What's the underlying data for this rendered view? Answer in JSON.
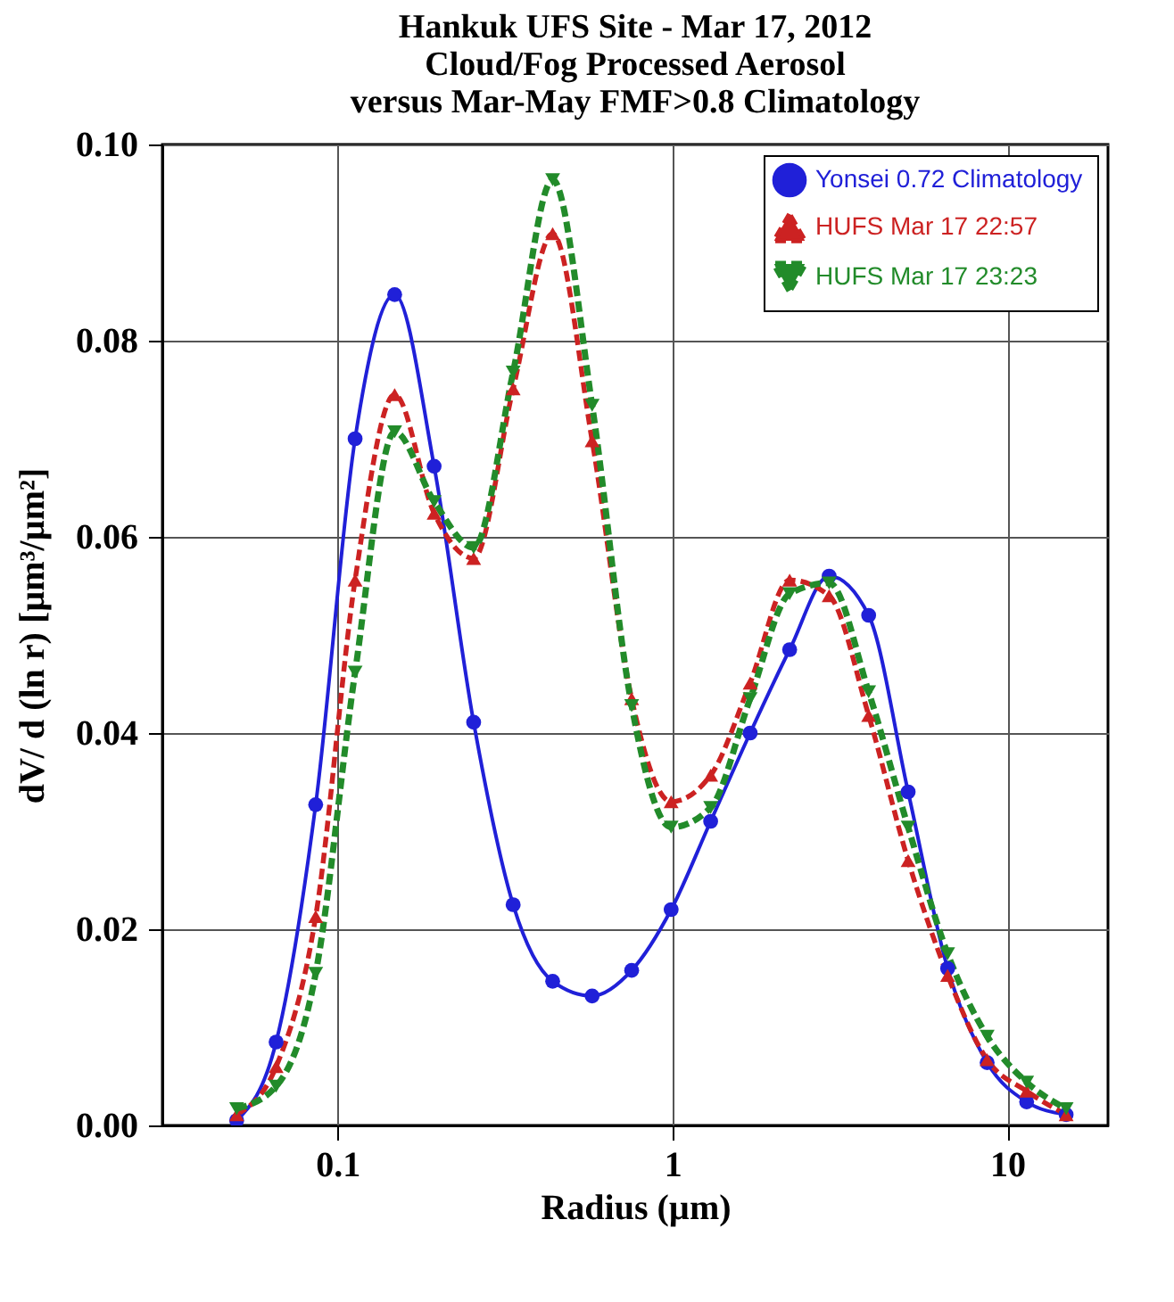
{
  "chart_data": {
    "type": "line",
    "title": "Hankuk UFS Site - Mar 17, 2012\nCloud/Fog Processed Aerosol\nversus Mar-May FMF>0.8 Climatology",
    "xlabel": "Radius (µm)",
    "ylabel": "dV/ d (ln r)  [µm³/µm²]",
    "log": "x",
    "xlim": [
      0.03,
      20
    ],
    "xticks": [
      0.1,
      1,
      10
    ],
    "ylim": [
      0,
      0.1
    ],
    "yticks": [
      {
        "value": 0,
        "label": "0.00"
      },
      {
        "value": 0.02,
        "label": "0.02"
      },
      {
        "value": 0.04,
        "label": "0.04"
      },
      {
        "value": 0.06,
        "label": "0.06"
      },
      {
        "value": 0.08,
        "label": "0.08"
      },
      {
        "value": 0.1,
        "label": "0.10"
      }
    ],
    "grid": true,
    "legend": "top right",
    "x": [
      0.05,
      0.0656,
      0.0861,
      0.1129,
      0.1482,
      0.1944,
      0.2551,
      0.3347,
      0.4392,
      0.5762,
      0.7561,
      0.992,
      1.3016,
      1.7078,
      2.2407,
      2.94,
      3.8575,
      5.0613,
      6.6407,
      8.7131,
      11.4323,
      15
    ],
    "series": [
      {
        "name": "Yonsei  0.72 Climatology",
        "color": "#2020d8",
        "marker": "circle",
        "line_style": "solid",
        "values": [
          0.0005,
          0.0085,
          0.0327,
          0.07,
          0.0847,
          0.0672,
          0.0411,
          0.0225,
          0.0147,
          0.0132,
          0.0158,
          0.022,
          0.031,
          0.04,
          0.0485,
          0.056,
          0.052,
          0.034,
          0.016,
          0.0064,
          0.0024,
          0.0011
        ]
      },
      {
        "name": "HUFS Mar 17 22:57",
        "color": "#cc2222",
        "marker": "triangle",
        "line_style": "dashed",
        "values": [
          0.0011,
          0.006,
          0.0213,
          0.0556,
          0.0745,
          0.0624,
          0.0578,
          0.0751,
          0.0909,
          0.0698,
          0.0435,
          0.033,
          0.0357,
          0.0451,
          0.0556,
          0.054,
          0.0418,
          0.027,
          0.0153,
          0.0067,
          0.0035,
          0.0011
        ]
      },
      {
        "name": "HUFS Mar 17 23:23",
        "color": "#228b2a",
        "marker": "triangle-down",
        "line_style": "dashed",
        "values": [
          0.0017,
          0.004,
          0.0155,
          0.0462,
          0.0707,
          0.0636,
          0.0589,
          0.0768,
          0.0964,
          0.0734,
          0.0428,
          0.0304,
          0.0324,
          0.0435,
          0.0542,
          0.0553,
          0.0442,
          0.0304,
          0.0175,
          0.0091,
          0.0044,
          0.0017
        ]
      }
    ]
  }
}
